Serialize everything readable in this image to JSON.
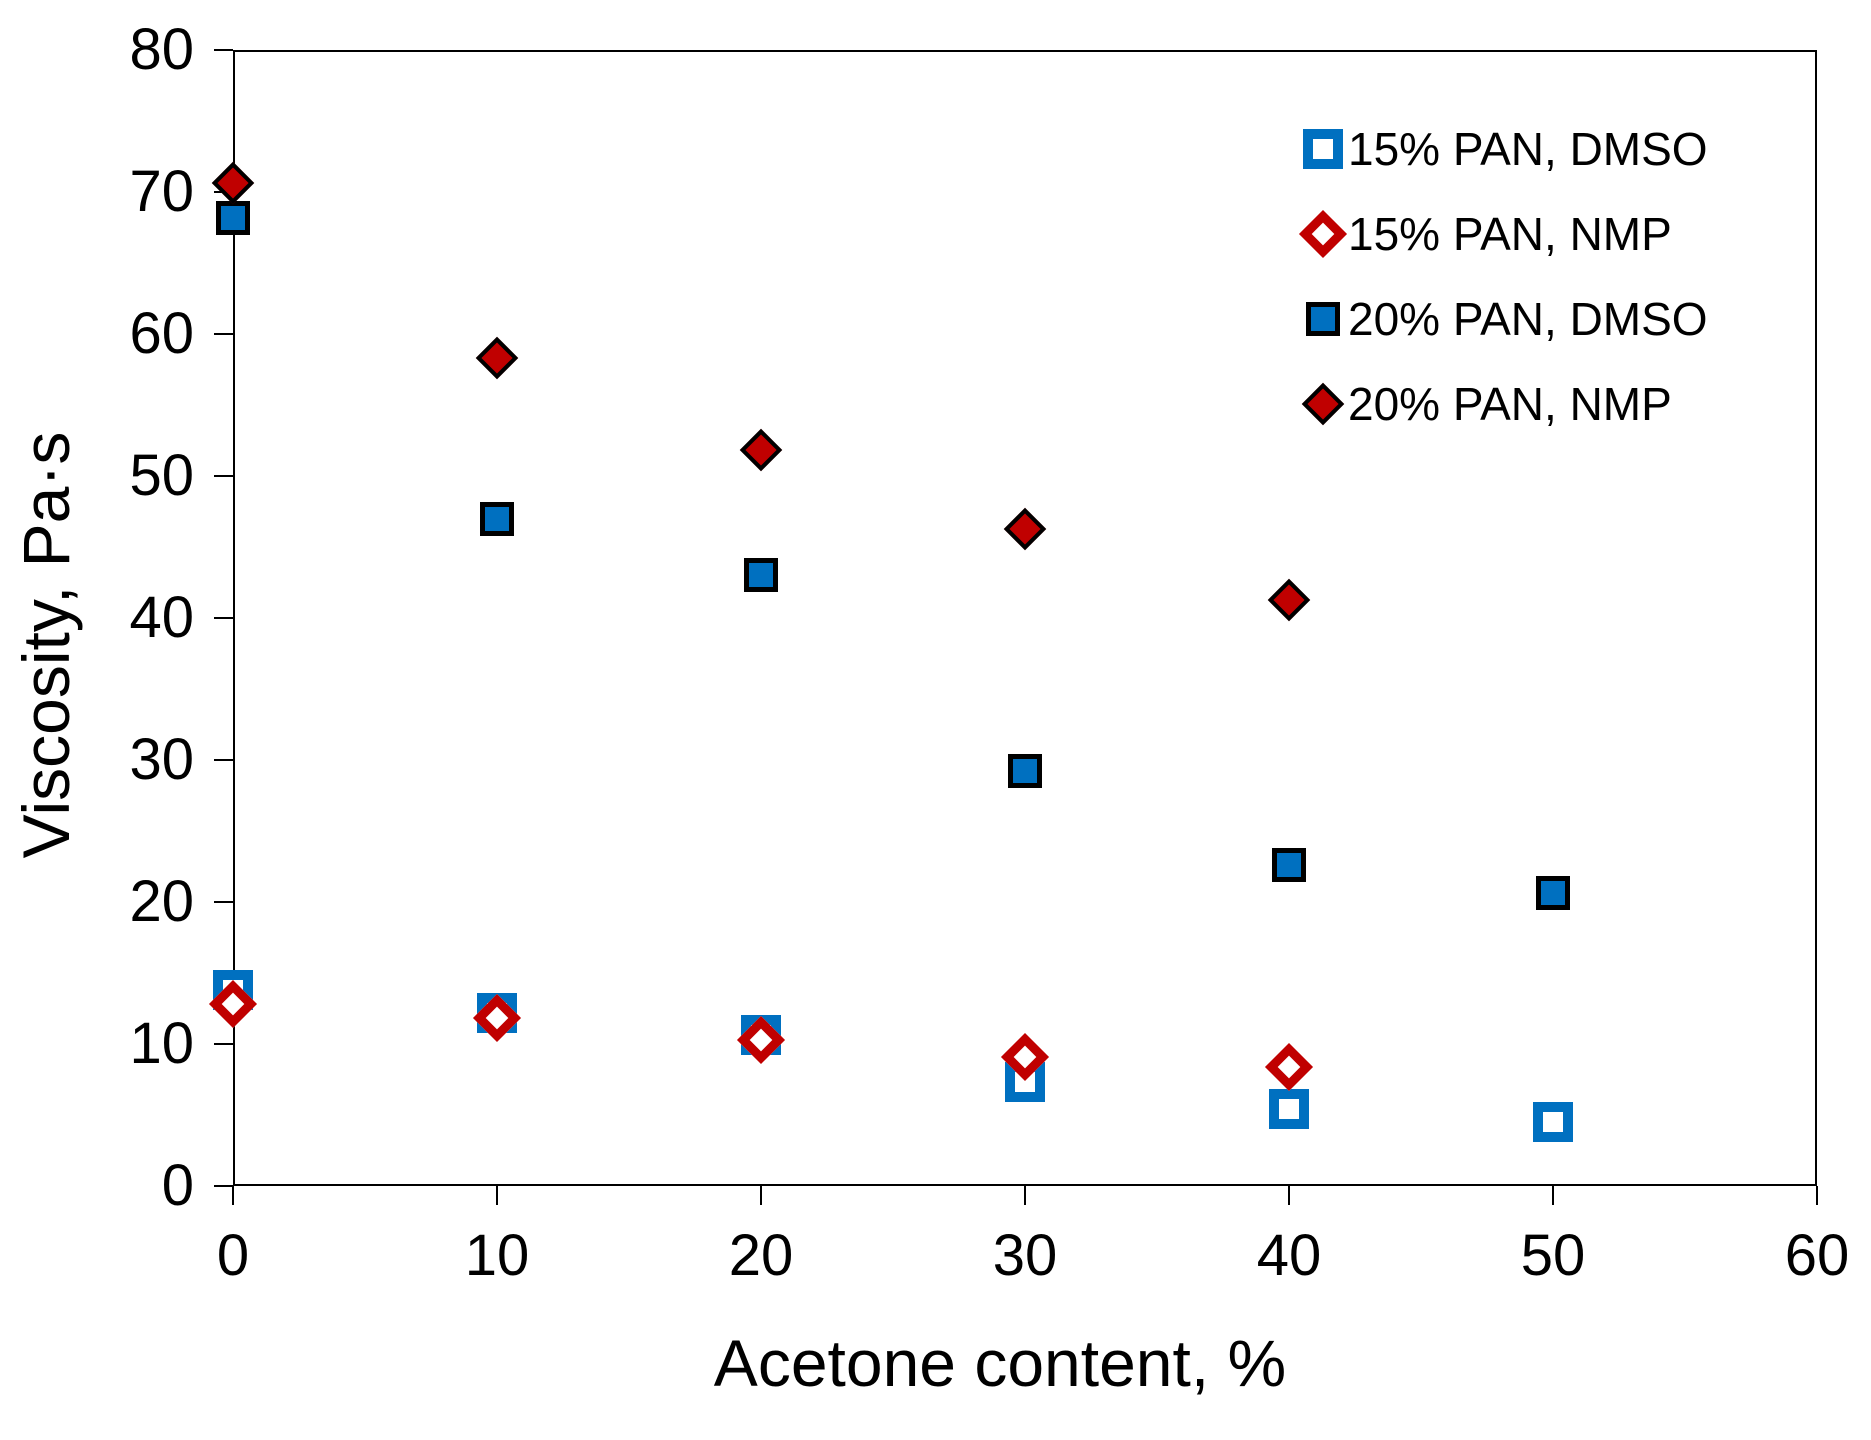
{
  "chart_data": {
    "type": "scatter",
    "title": "",
    "xlabel": "Acetone content, %",
    "ylabel": "Viscosity, Pa·s",
    "xlim": [
      0,
      60
    ],
    "ylim": [
      0,
      80
    ],
    "xticks": [
      0,
      10,
      20,
      30,
      40,
      50,
      60
    ],
    "yticks": [
      0,
      10,
      20,
      30,
      40,
      50,
      60,
      70,
      80
    ],
    "grid": false,
    "legend_position": "top-right-inside",
    "colors": {
      "blue": "#0070C0",
      "red": "#C00000",
      "axis": "#000000",
      "background": "#FFFFFF"
    },
    "series": [
      {
        "name": "15% PAN, DMSO",
        "marker": "open-square",
        "color": "#0070C0",
        "x": [
          0,
          10,
          20,
          30,
          40,
          50
        ],
        "y": [
          13.8,
          12.2,
          10.6,
          7.3,
          5.4,
          4.5
        ]
      },
      {
        "name": "15% PAN, NMP",
        "marker": "open-diamond",
        "color": "#C00000",
        "x": [
          0,
          10,
          20,
          30,
          40
        ],
        "y": [
          12.8,
          11.8,
          10.3,
          9.1,
          8.4
        ]
      },
      {
        "name": "20% PAN, DMSO",
        "marker": "filled-square",
        "color": "#0070C0",
        "x": [
          0,
          10,
          20,
          30,
          40,
          50
        ],
        "y": [
          68.2,
          47.0,
          43.0,
          29.2,
          22.6,
          20.6
        ]
      },
      {
        "name": "20% PAN, NMP",
        "marker": "filled-diamond",
        "color": "#C00000",
        "x": [
          0,
          10,
          20,
          30,
          40
        ],
        "y": [
          70.6,
          58.3,
          51.8,
          46.3,
          41.3
        ]
      }
    ]
  }
}
